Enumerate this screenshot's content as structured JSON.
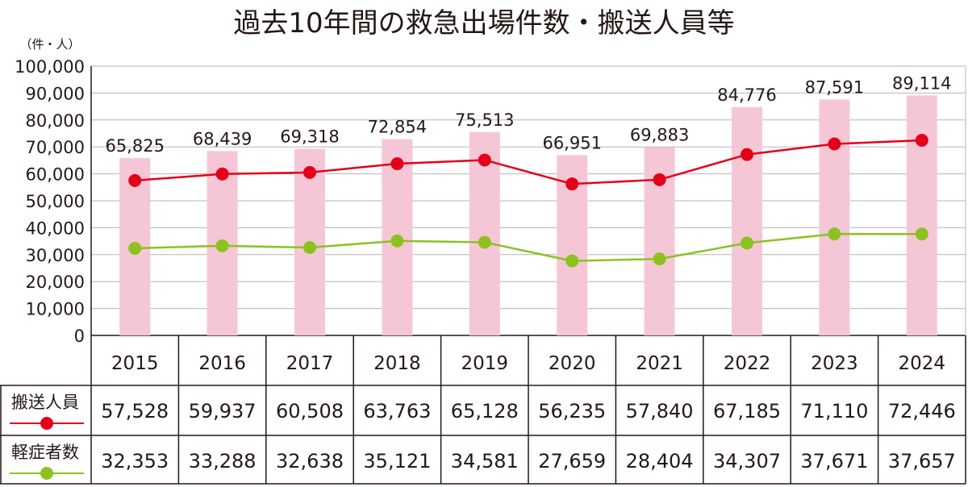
{
  "chart_data": {
    "type": "bar",
    "title": "過去10年間の救急出場件数・搬送人員等",
    "unit_label": "（件・人）",
    "ylim": [
      0,
      100000
    ],
    "yticks": [
      "0",
      "10,000",
      "20,000",
      "30,000",
      "40,000",
      "50,000",
      "60,000",
      "70,000",
      "80,000",
      "90,000",
      "100,000"
    ],
    "ytick_values": [
      0,
      10000,
      20000,
      30000,
      40000,
      50000,
      60000,
      70000,
      80000,
      90000,
      100000
    ],
    "categories": [
      "2015",
      "2016",
      "2017",
      "2018",
      "2019",
      "2020",
      "2021",
      "2022",
      "2023",
      "2024"
    ],
    "bars": {
      "name": "救急出場件数",
      "values": [
        65825,
        68439,
        69318,
        72854,
        75513,
        66951,
        69883,
        84776,
        87591,
        89114
      ],
      "labels": [
        "65,825",
        "68,439",
        "69,318",
        "72,854",
        "75,513",
        "66,951",
        "69,883",
        "84,776",
        "87,591",
        "89,114"
      ],
      "color": "#f5c7d6"
    },
    "series": [
      {
        "name": "搬送人員",
        "type": "line",
        "color": "#e50019",
        "values": [
          57528,
          59937,
          60508,
          63763,
          65128,
          56235,
          57840,
          67185,
          71110,
          72446
        ],
        "labels": [
          "57,528",
          "59,937",
          "60,508",
          "63,763",
          "65,128",
          "56,235",
          "57,840",
          "67,185",
          "71,110",
          "72,446"
        ]
      },
      {
        "name": "軽症者数",
        "type": "line",
        "color": "#8cc21f",
        "values": [
          32353,
          33288,
          32638,
          35121,
          34581,
          27659,
          28404,
          34307,
          37671,
          37657
        ],
        "labels": [
          "32,353",
          "33,288",
          "32,638",
          "35,121",
          "34,581",
          "27,659",
          "28,404",
          "34,307",
          "37,671",
          "37,657"
        ]
      }
    ],
    "grid": true
  }
}
